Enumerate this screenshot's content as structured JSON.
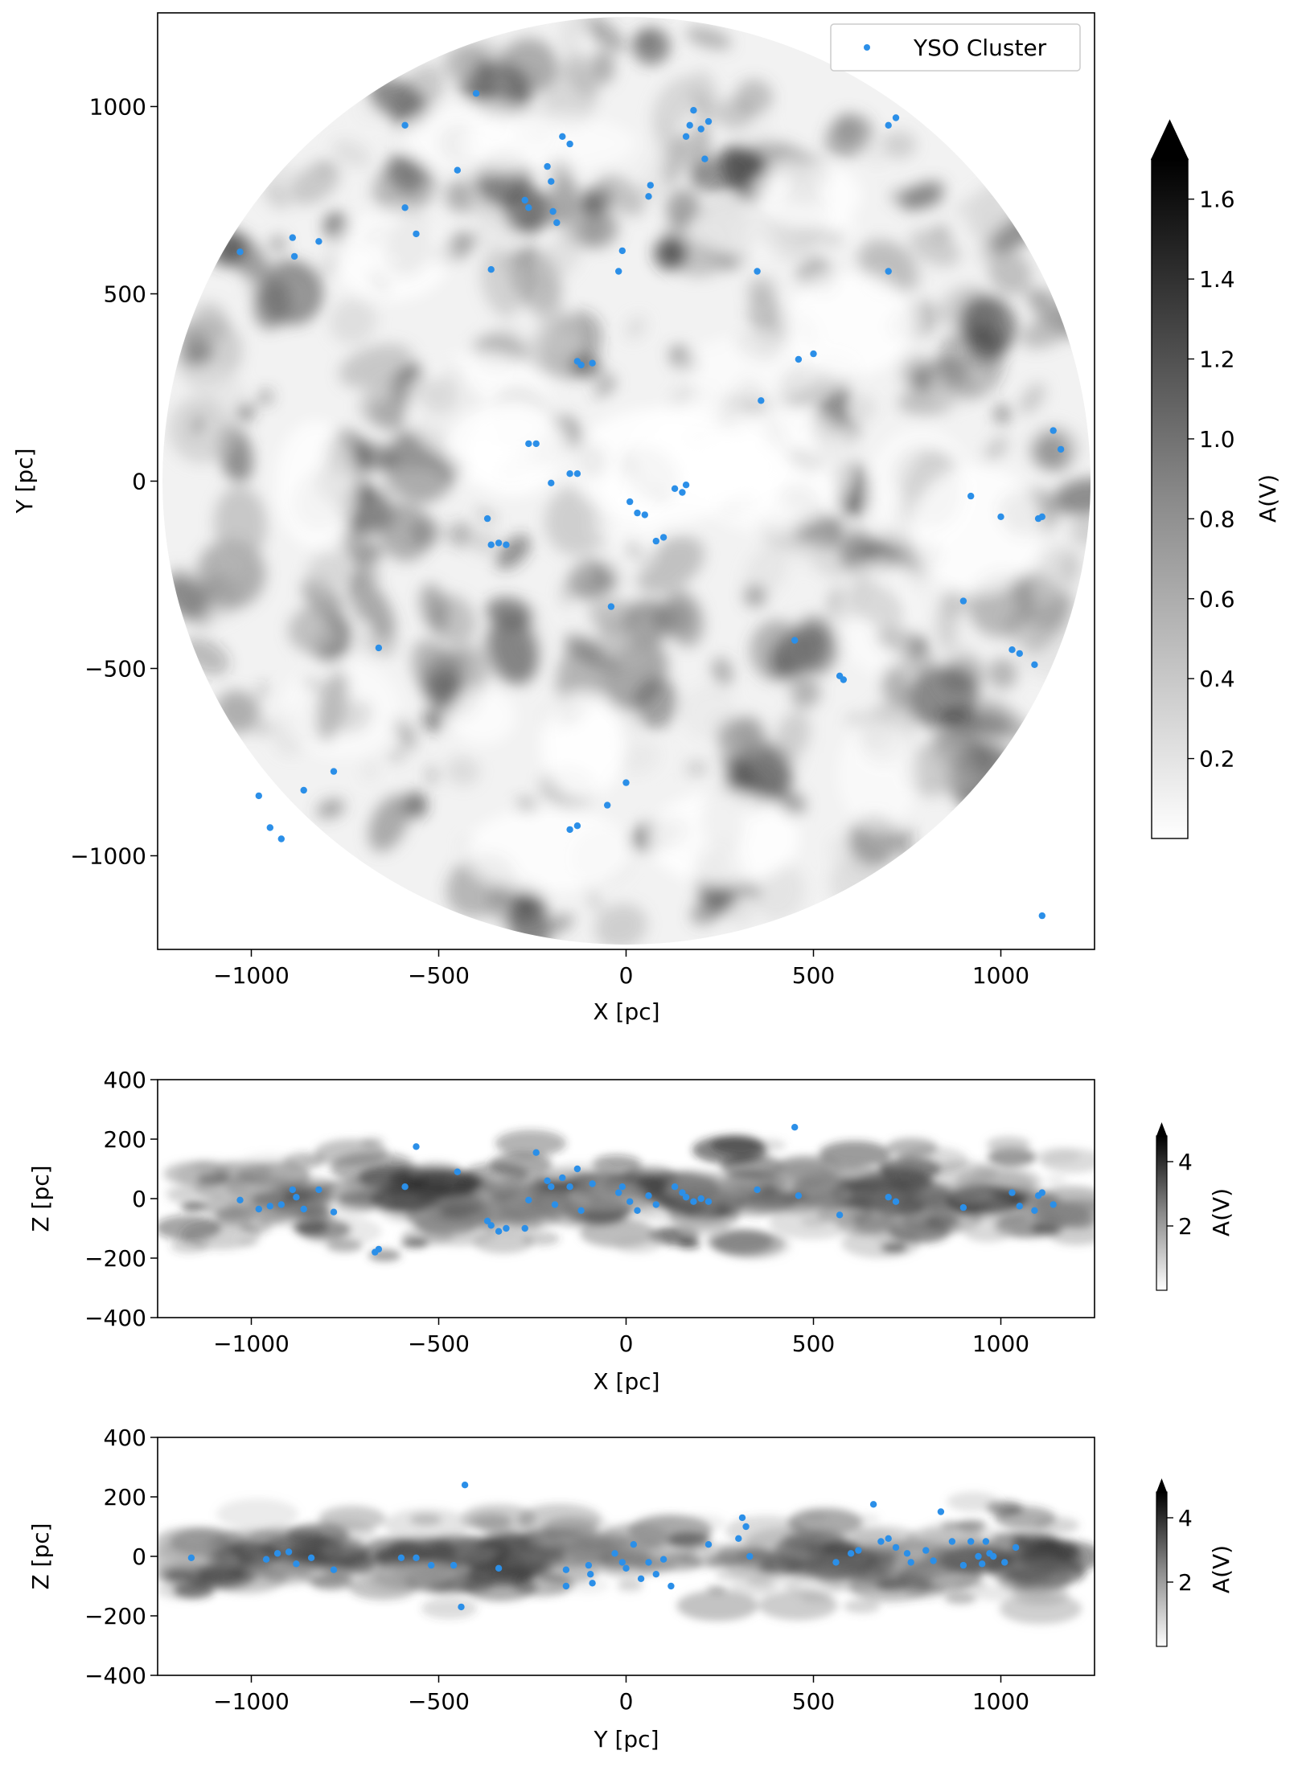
{
  "figure": {
    "background": "#ffffff",
    "accent": "#2b8fe8",
    "legend_label": "YSO Cluster",
    "legend_position": "top-right"
  },
  "chart_data": [
    {
      "type": "scatter",
      "panel": "xy",
      "title": "",
      "xlabel": "X [pc]",
      "ylabel": "Y [pc]",
      "xlim": [
        -1250,
        1250
      ],
      "ylim": [
        -1250,
        1250
      ],
      "xticks": [
        -1000,
        -500,
        0,
        500,
        1000
      ],
      "xtick_labels": [
        "−1000",
        "−500",
        "0",
        "500",
        "1000"
      ],
      "yticks": [
        -1000,
        -500,
        0,
        500,
        1000
      ],
      "ytick_labels": [
        "−1000",
        "−500",
        "0",
        "500",
        "1000"
      ],
      "background_map": "extinction A(V), greyscale, circular footprint radius 1250 pc",
      "colorbar": {
        "label": "A(V)",
        "min": 0.0,
        "max": 1.7,
        "extend": "max",
        "ticks": [
          0.2,
          0.4,
          0.6,
          0.8,
          1.0,
          1.2,
          1.4,
          1.6
        ],
        "tick_labels": [
          "0.2",
          "0.4",
          "0.6",
          "0.8",
          "1.0",
          "1.2",
          "1.4",
          "1.6"
        ]
      },
      "series": [
        {
          "name": "YSO Cluster",
          "color": "#2b8fe8",
          "points": [
            {
              "x": -1030,
              "y": 612
            },
            {
              "x": -890,
              "y": 650
            },
            {
              "x": -885,
              "y": 600
            },
            {
              "x": -820,
              "y": 640
            },
            {
              "x": -590,
              "y": 730
            },
            {
              "x": -560,
              "y": 660
            },
            {
              "x": -590,
              "y": 950
            },
            {
              "x": -450,
              "y": 830
            },
            {
              "x": -400,
              "y": 1035
            },
            {
              "x": -360,
              "y": 565
            },
            {
              "x": -270,
              "y": 750
            },
            {
              "x": -260,
              "y": 730
            },
            {
              "x": -210,
              "y": 840
            },
            {
              "x": -200,
              "y": 800
            },
            {
              "x": -195,
              "y": 720
            },
            {
              "x": -185,
              "y": 690
            },
            {
              "x": -170,
              "y": 920
            },
            {
              "x": -150,
              "y": 900
            },
            {
              "x": -130,
              "y": 320
            },
            {
              "x": -120,
              "y": 310
            },
            {
              "x": -90,
              "y": 315
            },
            {
              "x": -20,
              "y": 560
            },
            {
              "x": -10,
              "y": 615
            },
            {
              "x": 60,
              "y": 760
            },
            {
              "x": 65,
              "y": 790
            },
            {
              "x": 160,
              "y": 920
            },
            {
              "x": 170,
              "y": 950
            },
            {
              "x": 180,
              "y": 990
            },
            {
              "x": 200,
              "y": 940
            },
            {
              "x": 210,
              "y": 860
            },
            {
              "x": 220,
              "y": 960
            },
            {
              "x": 350,
              "y": 560
            },
            {
              "x": 360,
              "y": 215
            },
            {
              "x": 460,
              "y": 325
            },
            {
              "x": 500,
              "y": 340
            },
            {
              "x": 700,
              "y": 950
            },
            {
              "x": 720,
              "y": 970
            },
            {
              "x": 700,
              "y": 560
            },
            {
              "x": -260,
              "y": 100
            },
            {
              "x": -240,
              "y": 100
            },
            {
              "x": -200,
              "y": -5
            },
            {
              "x": -150,
              "y": 20
            },
            {
              "x": -130,
              "y": 20
            },
            {
              "x": -370,
              "y": -100
            },
            {
              "x": -360,
              "y": -170
            },
            {
              "x": -340,
              "y": -165
            },
            {
              "x": -320,
              "y": -170
            },
            {
              "x": 10,
              "y": -55
            },
            {
              "x": 30,
              "y": -85
            },
            {
              "x": 50,
              "y": -90
            },
            {
              "x": 80,
              "y": -160
            },
            {
              "x": 100,
              "y": -150
            },
            {
              "x": 130,
              "y": -20
            },
            {
              "x": 150,
              "y": -30
            },
            {
              "x": 160,
              "y": -10
            },
            {
              "x": -40,
              "y": -335
            },
            {
              "x": -660,
              "y": -445
            },
            {
              "x": -980,
              "y": -840
            },
            {
              "x": -950,
              "y": -925
            },
            {
              "x": -920,
              "y": -955
            },
            {
              "x": -860,
              "y": -825
            },
            {
              "x": -780,
              "y": -775
            },
            {
              "x": -150,
              "y": -930
            },
            {
              "x": -130,
              "y": -920
            },
            {
              "x": -50,
              "y": -865
            },
            {
              "x": 0,
              "y": -805
            },
            {
              "x": 450,
              "y": -425
            },
            {
              "x": 570,
              "y": -520
            },
            {
              "x": 580,
              "y": -530
            },
            {
              "x": 900,
              "y": -320
            },
            {
              "x": 1030,
              "y": -450
            },
            {
              "x": 1050,
              "y": -460
            },
            {
              "x": 1090,
              "y": -490
            },
            {
              "x": 920,
              "y": -40
            },
            {
              "x": 1000,
              "y": -95
            },
            {
              "x": 1100,
              "y": -100
            },
            {
              "x": 1110,
              "y": -95
            },
            {
              "x": 1140,
              "y": 135
            },
            {
              "x": 1160,
              "y": 85
            },
            {
              "x": 1110,
              "y": -1160
            }
          ]
        }
      ]
    },
    {
      "type": "scatter",
      "panel": "xz",
      "title": "",
      "xlabel": "X [pc]",
      "ylabel": "Z [pc]",
      "xlim": [
        -1250,
        1250
      ],
      "ylim": [
        -400,
        400
      ],
      "xticks": [
        -1000,
        -500,
        0,
        500,
        1000
      ],
      "xtick_labels": [
        "−1000",
        "−500",
        "0",
        "500",
        "1000"
      ],
      "yticks": [
        -400,
        -200,
        0,
        200,
        400
      ],
      "ytick_labels": [
        "−400",
        "−200",
        "0",
        "200",
        "400"
      ],
      "colorbar": {
        "label": "A(V)",
        "min": 0.0,
        "max": 4.8,
        "extend": "max",
        "ticks": [
          2,
          4
        ],
        "tick_labels": [
          "2",
          "4"
        ]
      },
      "series": [
        {
          "name": "YSO Cluster",
          "color": "#2b8fe8",
          "points": [
            {
              "x": -1030,
              "y": -5
            },
            {
              "x": -980,
              "y": -35
            },
            {
              "x": -950,
              "y": -25
            },
            {
              "x": -920,
              "y": -20
            },
            {
              "x": -890,
              "y": 30
            },
            {
              "x": -880,
              "y": 5
            },
            {
              "x": -860,
              "y": -35
            },
            {
              "x": -820,
              "y": 30
            },
            {
              "x": -780,
              "y": -45
            },
            {
              "x": -670,
              "y": -180
            },
            {
              "x": -660,
              "y": -170
            },
            {
              "x": -590,
              "y": 40
            },
            {
              "x": -560,
              "y": 175
            },
            {
              "x": -450,
              "y": 90
            },
            {
              "x": -370,
              "y": -75
            },
            {
              "x": -360,
              "y": -90
            },
            {
              "x": -340,
              "y": -110
            },
            {
              "x": -320,
              "y": -100
            },
            {
              "x": -270,
              "y": -100
            },
            {
              "x": -260,
              "y": -5
            },
            {
              "x": -240,
              "y": 155
            },
            {
              "x": -210,
              "y": 60
            },
            {
              "x": -200,
              "y": 40
            },
            {
              "x": -190,
              "y": -20
            },
            {
              "x": -170,
              "y": 70
            },
            {
              "x": -150,
              "y": 40
            },
            {
              "x": -130,
              "y": 100
            },
            {
              "x": -120,
              "y": -40
            },
            {
              "x": -90,
              "y": 50
            },
            {
              "x": -20,
              "y": 20
            },
            {
              "x": -10,
              "y": 40
            },
            {
              "x": 10,
              "y": -10
            },
            {
              "x": 30,
              "y": -40
            },
            {
              "x": 60,
              "y": 10
            },
            {
              "x": 80,
              "y": -20
            },
            {
              "x": 130,
              "y": 40
            },
            {
              "x": 150,
              "y": 20
            },
            {
              "x": 160,
              "y": 5
            },
            {
              "x": 180,
              "y": -10
            },
            {
              "x": 200,
              "y": 0
            },
            {
              "x": 220,
              "y": -10
            },
            {
              "x": 350,
              "y": 30
            },
            {
              "x": 450,
              "y": 240
            },
            {
              "x": 460,
              "y": 10
            },
            {
              "x": 570,
              "y": -55
            },
            {
              "x": 700,
              "y": 5
            },
            {
              "x": 720,
              "y": -10
            },
            {
              "x": 900,
              "y": -30
            },
            {
              "x": 1030,
              "y": 20
            },
            {
              "x": 1050,
              "y": -25
            },
            {
              "x": 1090,
              "y": -40
            },
            {
              "x": 1100,
              "y": 10
            },
            {
              "x": 1110,
              "y": 20
            },
            {
              "x": 1140,
              "y": -20
            }
          ]
        }
      ]
    },
    {
      "type": "scatter",
      "panel": "yz",
      "title": "",
      "xlabel": "Y [pc]",
      "ylabel": "Z [pc]",
      "xlim": [
        -1250,
        1250
      ],
      "ylim": [
        -400,
        400
      ],
      "xticks": [
        -1000,
        -500,
        0,
        500,
        1000
      ],
      "xtick_labels": [
        "−1000",
        "−500",
        "0",
        "500",
        "1000"
      ],
      "yticks": [
        -400,
        -200,
        0,
        200,
        400
      ],
      "ytick_labels": [
        "−400",
        "−200",
        "0",
        "200",
        "400"
      ],
      "colorbar": {
        "label": "A(V)",
        "min": 0.0,
        "max": 4.8,
        "extend": "max",
        "ticks": [
          2,
          4
        ],
        "tick_labels": [
          "2",
          "4"
        ]
      },
      "series": [
        {
          "name": "YSO Cluster",
          "color": "#2b8fe8",
          "points": [
            {
              "x": -1160,
              "y": -5
            },
            {
              "x": -960,
              "y": -10
            },
            {
              "x": -930,
              "y": 10
            },
            {
              "x": -900,
              "y": 15
            },
            {
              "x": -880,
              "y": -25
            },
            {
              "x": -840,
              "y": -5
            },
            {
              "x": -780,
              "y": -45
            },
            {
              "x": -600,
              "y": -5
            },
            {
              "x": -560,
              "y": -5
            },
            {
              "x": -520,
              "y": -30
            },
            {
              "x": -460,
              "y": -30
            },
            {
              "x": -440,
              "y": -170
            },
            {
              "x": -430,
              "y": 240
            },
            {
              "x": -340,
              "y": -40
            },
            {
              "x": -160,
              "y": -45
            },
            {
              "x": -160,
              "y": -100
            },
            {
              "x": -100,
              "y": -30
            },
            {
              "x": -95,
              "y": -60
            },
            {
              "x": -90,
              "y": -90
            },
            {
              "x": -30,
              "y": 10
            },
            {
              "x": -10,
              "y": -20
            },
            {
              "x": 0,
              "y": -40
            },
            {
              "x": 20,
              "y": 40
            },
            {
              "x": 40,
              "y": -75
            },
            {
              "x": 60,
              "y": -20
            },
            {
              "x": 80,
              "y": -60
            },
            {
              "x": 100,
              "y": -10
            },
            {
              "x": 120,
              "y": -100
            },
            {
              "x": 220,
              "y": 40
            },
            {
              "x": 300,
              "y": 60
            },
            {
              "x": 310,
              "y": 130
            },
            {
              "x": 320,
              "y": 100
            },
            {
              "x": 330,
              "y": 0
            },
            {
              "x": 560,
              "y": -20
            },
            {
              "x": 600,
              "y": 10
            },
            {
              "x": 620,
              "y": 20
            },
            {
              "x": 660,
              "y": 175
            },
            {
              "x": 680,
              "y": 50
            },
            {
              "x": 700,
              "y": 60
            },
            {
              "x": 720,
              "y": 30
            },
            {
              "x": 750,
              "y": 10
            },
            {
              "x": 760,
              "y": -20
            },
            {
              "x": 800,
              "y": 20
            },
            {
              "x": 820,
              "y": -15
            },
            {
              "x": 840,
              "y": 150
            },
            {
              "x": 870,
              "y": 50
            },
            {
              "x": 900,
              "y": -30
            },
            {
              "x": 920,
              "y": 50
            },
            {
              "x": 940,
              "y": 0
            },
            {
              "x": 950,
              "y": -25
            },
            {
              "x": 960,
              "y": 50
            },
            {
              "x": 970,
              "y": 10
            },
            {
              "x": 980,
              "y": 0
            },
            {
              "x": 1010,
              "y": -20
            },
            {
              "x": 1040,
              "y": 30
            }
          ]
        }
      ]
    }
  ]
}
